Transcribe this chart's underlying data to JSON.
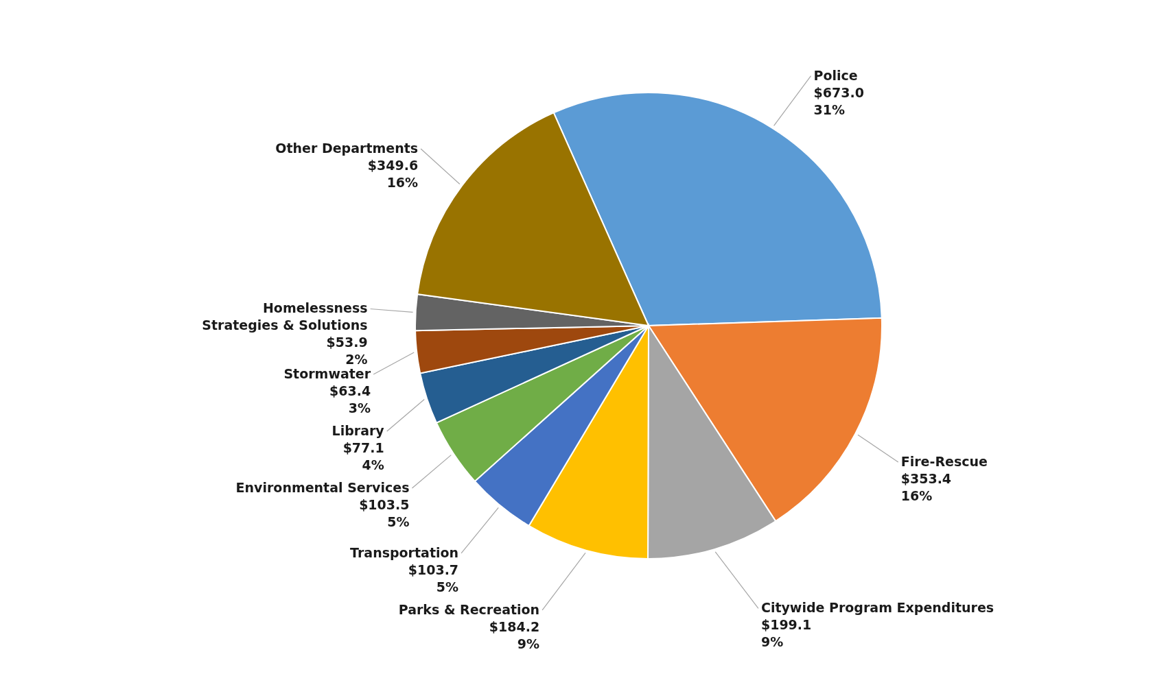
{
  "chart_data": {
    "type": "pie",
    "categories": [
      "Police",
      "Fire-Rescue",
      "Citywide Program Expenditures",
      "Parks & Recreation",
      "Transportation",
      "Environmental Services",
      "Library",
      "Stormwater",
      "Homelessness Strategies & Solutions",
      "Other Departments"
    ],
    "values": [
      673.0,
      353.4,
      199.1,
      184.2,
      103.7,
      103.5,
      77.1,
      63.4,
      53.9,
      349.6
    ],
    "value_labels": [
      "$673.0\n31%",
      "$353.4\n16%",
      "$199.1\n9%",
      "$184.2\n9%",
      "$103.7\n5%",
      "$103.5\n5%",
      "$77.1\n4%",
      "$63.4\n3%",
      "$53.9\n2%",
      "$349.6\n16%"
    ],
    "colors": [
      "#5b9bd5",
      "#ed7d31",
      "#a5a5a5",
      "#ffc000",
      "#4472c4",
      "#70ad47",
      "#255e91",
      "#9e480e",
      "#636363",
      "#997300"
    ],
    "legend": false
  }
}
